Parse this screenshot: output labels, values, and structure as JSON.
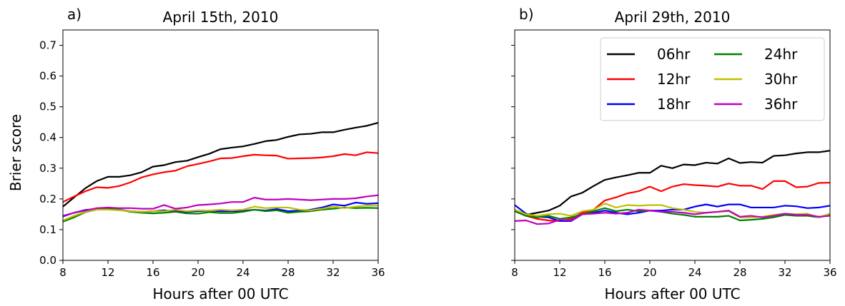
{
  "chart_data": [
    {
      "type": "line",
      "panel_label": "a)",
      "title": "April 15th, 2010",
      "xlabel": "Hours after 00 UTC",
      "ylabel": "Brier score",
      "xlim": [
        8,
        36
      ],
      "ylim": [
        0.0,
        0.75
      ],
      "xticks": [
        8,
        12,
        16,
        20,
        24,
        28,
        32,
        36
      ],
      "yticks": [
        0.0,
        0.1,
        0.2,
        0.3,
        0.4,
        0.5,
        0.6,
        0.7
      ],
      "ytick_labels": [
        "0.0",
        "0.1",
        "0.2",
        "0.3",
        "0.4",
        "0.5",
        "0.6",
        "0.7"
      ],
      "show_y_tick_labels": true,
      "grid": false,
      "x": [
        8,
        9,
        10,
        11,
        12,
        13,
        14,
        15,
        16,
        17,
        18,
        19,
        20,
        21,
        22,
        23,
        24,
        25,
        26,
        27,
        28,
        29,
        30,
        31,
        32,
        33,
        34,
        35,
        36
      ],
      "series": [
        {
          "name": "06hr",
          "color": "#000000",
          "values": [
            0.175,
            0.205,
            0.235,
            0.258,
            0.272,
            0.272,
            0.277,
            0.287,
            0.305,
            0.31,
            0.32,
            0.324,
            0.336,
            0.347,
            0.362,
            0.367,
            0.371,
            0.379,
            0.388,
            0.392,
            0.402,
            0.41,
            0.412,
            0.417,
            0.417,
            0.425,
            0.432,
            0.438,
            0.448
          ]
        },
        {
          "name": "12hr",
          "color": "#ff0000",
          "values": [
            0.19,
            0.208,
            0.225,
            0.238,
            0.236,
            0.242,
            0.254,
            0.27,
            0.28,
            0.287,
            0.292,
            0.306,
            0.314,
            0.322,
            0.332,
            0.333,
            0.339,
            0.344,
            0.342,
            0.341,
            0.331,
            0.332,
            0.333,
            0.335,
            0.339,
            0.346,
            0.342,
            0.352,
            0.349
          ]
        },
        {
          "name": "18hr",
          "color": "#0000ff",
          "values": [
            0.143,
            0.155,
            0.164,
            0.168,
            0.17,
            0.165,
            0.16,
            0.158,
            0.16,
            0.163,
            0.16,
            0.158,
            0.16,
            0.162,
            0.16,
            0.16,
            0.161,
            0.165,
            0.162,
            0.167,
            0.16,
            0.162,
            0.165,
            0.172,
            0.182,
            0.178,
            0.188,
            0.184,
            0.186
          ]
        },
        {
          "name": "24hr",
          "color": "#008000",
          "values": [
            0.126,
            0.14,
            0.157,
            0.165,
            0.168,
            0.165,
            0.158,
            0.155,
            0.153,
            0.155,
            0.158,
            0.153,
            0.152,
            0.157,
            0.154,
            0.154,
            0.158,
            0.165,
            0.16,
            0.163,
            0.155,
            0.158,
            0.16,
            0.165,
            0.168,
            0.172,
            0.17,
            0.171,
            0.17
          ]
        },
        {
          "name": "30hr",
          "color": "#bfbf00",
          "values": [
            0.13,
            0.145,
            0.158,
            0.165,
            0.165,
            0.163,
            0.16,
            0.158,
            0.16,
            0.16,
            0.165,
            0.16,
            0.163,
            0.162,
            0.165,
            0.163,
            0.165,
            0.175,
            0.17,
            0.172,
            0.172,
            0.165,
            0.163,
            0.168,
            0.175,
            0.17,
            0.175,
            0.178,
            0.178
          ]
        },
        {
          "name": "36hr",
          "color": "#bf00bf",
          "values": [
            0.145,
            0.155,
            0.162,
            0.17,
            0.172,
            0.17,
            0.17,
            0.168,
            0.168,
            0.18,
            0.168,
            0.172,
            0.18,
            0.182,
            0.185,
            0.19,
            0.19,
            0.204,
            0.198,
            0.198,
            0.2,
            0.198,
            0.196,
            0.198,
            0.2,
            0.2,
            0.202,
            0.208,
            0.212
          ]
        }
      ]
    },
    {
      "type": "line",
      "panel_label": "b)",
      "title": "April 29th, 2010",
      "xlabel": "Hours after 00 UTC",
      "ylabel": "",
      "xlim": [
        8,
        36
      ],
      "ylim": [
        0.0,
        0.75
      ],
      "xticks": [
        8,
        12,
        16,
        20,
        24,
        28,
        32,
        36
      ],
      "yticks": [
        0.0,
        0.1,
        0.2,
        0.3,
        0.4,
        0.5,
        0.6,
        0.7
      ],
      "show_y_tick_labels": false,
      "grid": false,
      "legend": {
        "placement": "top-right",
        "columns": 2
      },
      "x": [
        8,
        9,
        10,
        11,
        12,
        13,
        14,
        15,
        16,
        17,
        18,
        19,
        20,
        21,
        22,
        23,
        24,
        25,
        26,
        27,
        28,
        29,
        30,
        31,
        32,
        33,
        34,
        35,
        36
      ],
      "series": [
        {
          "name": "06hr",
          "color": "#000000",
          "values": [
            0.16,
            0.148,
            0.155,
            0.162,
            0.178,
            0.208,
            0.22,
            0.242,
            0.262,
            0.27,
            0.277,
            0.285,
            0.285,
            0.308,
            0.3,
            0.312,
            0.31,
            0.318,
            0.315,
            0.332,
            0.317,
            0.32,
            0.318,
            0.34,
            0.342,
            0.348,
            0.352,
            0.352,
            0.357
          ]
        },
        {
          "name": "12hr",
          "color": "#ff0000",
          "values": [
            0.16,
            0.145,
            0.135,
            0.13,
            0.128,
            0.135,
            0.155,
            0.165,
            0.195,
            0.205,
            0.218,
            0.225,
            0.24,
            0.225,
            0.24,
            0.248,
            0.245,
            0.243,
            0.24,
            0.25,
            0.243,
            0.243,
            0.232,
            0.258,
            0.258,
            0.238,
            0.24,
            0.252,
            0.253
          ]
        },
        {
          "name": "18hr",
          "color": "#0000ff",
          "values": [
            0.18,
            0.152,
            0.142,
            0.14,
            0.128,
            0.128,
            0.15,
            0.155,
            0.162,
            0.155,
            0.15,
            0.155,
            0.162,
            0.162,
            0.165,
            0.165,
            0.175,
            0.182,
            0.175,
            0.182,
            0.182,
            0.172,
            0.172,
            0.172,
            0.178,
            0.176,
            0.17,
            0.172,
            0.178
          ]
        },
        {
          "name": "24hr",
          "color": "#008000",
          "values": [
            0.16,
            0.145,
            0.14,
            0.145,
            0.135,
            0.14,
            0.15,
            0.16,
            0.17,
            0.16,
            0.165,
            0.16,
            0.162,
            0.158,
            0.152,
            0.148,
            0.142,
            0.142,
            0.142,
            0.145,
            0.13,
            0.132,
            0.135,
            0.14,
            0.148,
            0.145,
            0.145,
            0.14,
            0.148
          ]
        },
        {
          "name": "30hr",
          "color": "#bfbf00",
          "values": [
            0.165,
            0.15,
            0.145,
            0.15,
            0.152,
            0.145,
            0.16,
            0.165,
            0.185,
            0.172,
            0.18,
            0.178,
            0.18,
            0.18,
            0.17,
            0.165,
            0.158,
            0.155,
            0.158,
            0.16,
            0.14,
            0.14,
            0.142,
            0.148,
            0.152,
            0.15,
            0.152,
            0.14,
            0.152
          ]
        },
        {
          "name": "36hr",
          "color": "#bf00bf",
          "values": [
            0.128,
            0.13,
            0.118,
            0.12,
            0.132,
            0.13,
            0.15,
            0.152,
            0.155,
            0.152,
            0.155,
            0.165,
            0.162,
            0.158,
            0.158,
            0.155,
            0.15,
            0.155,
            0.158,
            0.162,
            0.142,
            0.145,
            0.14,
            0.145,
            0.152,
            0.148,
            0.148,
            0.142,
            0.145
          ]
        }
      ]
    }
  ]
}
